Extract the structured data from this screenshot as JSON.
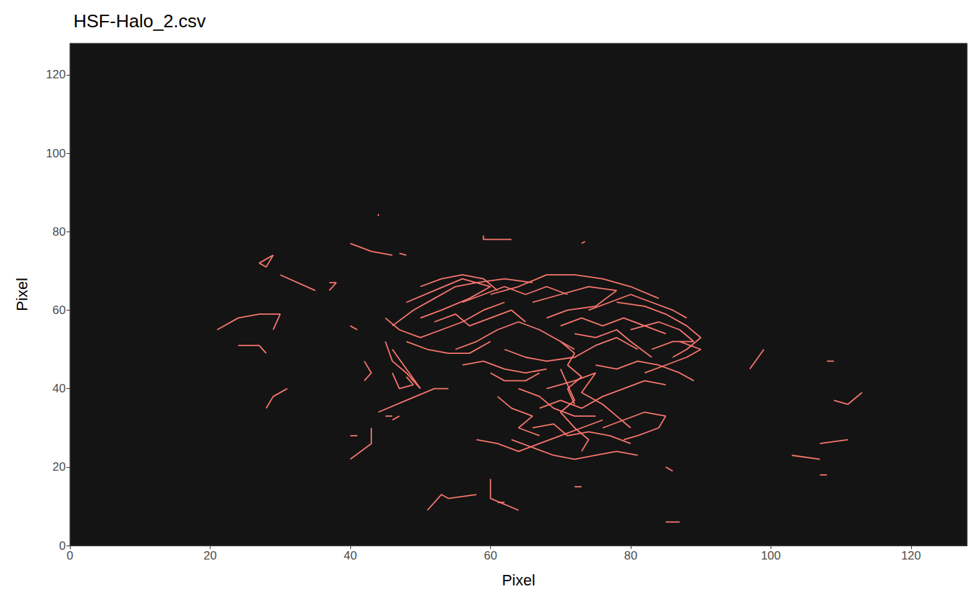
{
  "chart_data": {
    "type": "line",
    "title": "HSF-Halo_2.csv",
    "x_label": "Pixel",
    "y_label": "Pixel",
    "xlim": [
      0,
      128
    ],
    "ylim": [
      0,
      128
    ],
    "xticks": [
      0,
      20,
      40,
      60,
      80,
      100,
      120
    ],
    "yticks": [
      0,
      20,
      40,
      60,
      80,
      100,
      120
    ],
    "grid": false,
    "color": "#f8766d",
    "series": [
      {
        "values": [
          [
            21,
            55
          ],
          [
            24,
            58
          ],
          [
            27,
            59
          ],
          [
            30,
            59
          ],
          [
            29,
            55
          ]
        ]
      },
      {
        "values": [
          [
            24,
            51
          ],
          [
            27,
            51
          ],
          [
            28,
            49
          ]
        ]
      },
      {
        "values": [
          [
            27,
            72
          ],
          [
            29,
            74
          ],
          [
            28,
            71
          ],
          [
            27,
            72
          ]
        ]
      },
      {
        "values": [
          [
            30,
            69
          ],
          [
            35,
            65
          ]
        ]
      },
      {
        "values": [
          [
            28,
            35
          ],
          [
            29,
            38
          ],
          [
            31,
            40
          ]
        ]
      },
      {
        "values": [
          [
            37,
            65
          ],
          [
            38,
            67
          ],
          [
            37,
            67
          ]
        ]
      },
      {
        "values": [
          [
            40,
            77
          ],
          [
            43,
            75
          ],
          [
            46,
            74
          ]
        ]
      },
      {
        "values": [
          [
            47,
            74.5
          ],
          [
            48,
            74
          ]
        ]
      },
      {
        "values": [
          [
            44,
            84.5
          ],
          [
            44,
            84
          ]
        ]
      },
      {
        "values": [
          [
            59,
            79
          ],
          [
            59,
            78
          ],
          [
            63,
            78
          ]
        ]
      },
      {
        "values": [
          [
            73,
            77
          ],
          [
            73.5,
            77.5
          ]
        ]
      },
      {
        "values": [
          [
            40,
            56
          ],
          [
            41,
            55
          ]
        ]
      },
      {
        "values": [
          [
            97,
            45
          ],
          [
            99,
            50
          ]
        ]
      },
      {
        "values": [
          [
            108,
            47
          ],
          [
            109,
            47
          ]
        ]
      },
      {
        "values": [
          [
            109,
            37
          ],
          [
            111,
            36
          ],
          [
            113,
            39
          ]
        ]
      },
      {
        "values": [
          [
            107,
            26
          ],
          [
            111,
            27
          ]
        ]
      },
      {
        "values": [
          [
            103,
            23
          ],
          [
            107,
            22
          ]
        ]
      },
      {
        "values": [
          [
            107,
            18
          ],
          [
            108,
            18
          ]
        ]
      },
      {
        "values": [
          [
            40,
            22
          ],
          [
            43,
            26
          ],
          [
            43,
            30
          ]
        ]
      },
      {
        "values": [
          [
            40,
            28
          ],
          [
            41,
            28
          ]
        ]
      },
      {
        "values": [
          [
            44,
            34
          ],
          [
            48,
            37
          ],
          [
            52,
            40
          ],
          [
            54,
            40
          ]
        ]
      },
      {
        "values": [
          [
            45,
            33
          ],
          [
            46,
            33
          ]
        ]
      },
      {
        "values": [
          [
            51,
            9
          ],
          [
            53,
            13
          ],
          [
            54,
            12
          ],
          [
            58,
            13
          ]
        ]
      },
      {
        "values": [
          [
            60,
            17
          ],
          [
            60,
            12
          ],
          [
            64,
            9
          ]
        ]
      },
      {
        "values": [
          [
            61,
            11
          ],
          [
            62,
            11
          ]
        ]
      },
      {
        "values": [
          [
            72,
            15
          ],
          [
            73,
            15
          ]
        ]
      },
      {
        "values": [
          [
            85,
            20
          ],
          [
            86,
            19
          ]
        ]
      },
      {
        "values": [
          [
            85,
            6
          ],
          [
            87,
            6
          ]
        ]
      },
      {
        "values": [
          [
            42,
            47
          ],
          [
            43,
            44
          ],
          [
            42,
            42
          ]
        ]
      },
      {
        "values": [
          [
            46,
            32
          ],
          [
            47,
            33
          ]
        ]
      },
      {
        "values": [
          [
            45,
            52
          ],
          [
            46,
            47
          ],
          [
            48,
            44
          ],
          [
            49,
            42
          ],
          [
            50,
            40
          ],
          [
            48,
            45
          ],
          [
            46,
            50
          ]
        ]
      },
      {
        "values": [
          [
            46,
            56
          ],
          [
            49,
            60
          ],
          [
            52,
            63
          ],
          [
            55,
            66
          ],
          [
            58,
            67
          ],
          [
            62,
            68
          ],
          [
            66,
            67
          ]
        ]
      },
      {
        "values": [
          [
            48,
            62
          ],
          [
            52,
            65
          ],
          [
            56,
            68
          ],
          [
            60,
            66
          ],
          [
            57,
            63
          ],
          [
            53,
            60
          ],
          [
            50,
            58
          ]
        ]
      },
      {
        "values": [
          [
            45,
            58
          ],
          [
            47,
            55
          ],
          [
            50,
            53
          ],
          [
            53,
            55
          ],
          [
            56,
            57
          ],
          [
            59,
            60
          ],
          [
            62,
            62
          ]
        ]
      },
      {
        "values": [
          [
            60,
            64
          ],
          [
            64,
            66
          ],
          [
            68,
            69
          ],
          [
            72,
            69
          ],
          [
            76,
            68
          ],
          [
            80,
            66
          ],
          [
            84,
            63
          ]
        ]
      },
      {
        "values": [
          [
            66,
            62
          ],
          [
            70,
            64
          ],
          [
            74,
            66
          ],
          [
            78,
            65
          ],
          [
            75,
            61
          ],
          [
            71,
            60
          ],
          [
            68,
            58
          ]
        ]
      },
      {
        "values": [
          [
            78,
            62
          ],
          [
            82,
            61
          ],
          [
            85,
            59
          ],
          [
            88,
            56
          ],
          [
            90,
            53
          ],
          [
            88,
            50
          ],
          [
            86,
            48
          ]
        ]
      },
      {
        "values": [
          [
            80,
            55
          ],
          [
            84,
            57
          ],
          [
            87,
            55
          ],
          [
            89,
            52
          ],
          [
            86,
            52
          ],
          [
            83,
            50
          ]
        ]
      },
      {
        "values": [
          [
            55,
            50
          ],
          [
            58,
            52
          ],
          [
            61,
            55
          ],
          [
            64,
            57
          ],
          [
            67,
            55
          ],
          [
            70,
            52
          ],
          [
            72,
            50
          ]
        ]
      },
      {
        "values": [
          [
            62,
            50
          ],
          [
            65,
            48
          ],
          [
            68,
            47
          ],
          [
            72,
            48
          ],
          [
            75,
            51
          ],
          [
            78,
            53
          ],
          [
            81,
            50
          ]
        ]
      },
      {
        "values": [
          [
            70,
            56
          ],
          [
            73,
            58
          ],
          [
            76,
            56
          ],
          [
            79,
            58
          ],
          [
            82,
            56
          ],
          [
            85,
            54
          ]
        ]
      },
      {
        "values": [
          [
            52,
            57
          ],
          [
            55,
            59
          ],
          [
            57,
            56
          ],
          [
            60,
            58
          ],
          [
            63,
            60
          ],
          [
            65,
            57
          ]
        ]
      },
      {
        "values": [
          [
            70,
            45
          ],
          [
            71,
            41
          ],
          [
            72,
            37
          ],
          [
            70,
            34
          ],
          [
            72,
            30
          ],
          [
            74,
            27
          ],
          [
            73,
            24
          ]
        ]
      },
      {
        "values": [
          [
            68,
            40
          ],
          [
            72,
            42
          ],
          [
            75,
            44
          ],
          [
            73,
            39
          ],
          [
            76,
            36
          ],
          [
            78,
            33
          ],
          [
            80,
            30
          ]
        ]
      },
      {
        "values": [
          [
            63,
            27
          ],
          [
            66,
            25
          ],
          [
            69,
            23
          ],
          [
            72,
            22
          ],
          [
            75,
            23
          ],
          [
            78,
            24
          ],
          [
            81,
            23
          ]
        ]
      },
      {
        "values": [
          [
            58,
            27
          ],
          [
            61,
            26
          ],
          [
            64,
            24
          ],
          [
            67,
            26
          ],
          [
            70,
            28
          ],
          [
            73,
            30
          ],
          [
            76,
            32
          ]
        ]
      },
      {
        "values": [
          [
            76,
            30
          ],
          [
            79,
            32
          ],
          [
            82,
            34
          ],
          [
            85,
            33
          ],
          [
            84,
            30
          ],
          [
            81,
            28
          ],
          [
            79,
            27
          ]
        ]
      },
      {
        "values": [
          [
            67,
            35
          ],
          [
            70,
            37
          ],
          [
            73,
            35
          ],
          [
            76,
            38
          ],
          [
            79,
            40
          ],
          [
            82,
            42
          ],
          [
            85,
            41
          ]
        ]
      },
      {
        "values": [
          [
            75,
            46
          ],
          [
            78,
            45
          ],
          [
            81,
            47
          ],
          [
            84,
            46
          ],
          [
            87,
            44
          ],
          [
            89,
            42
          ]
        ]
      },
      {
        "values": [
          [
            70,
            52
          ],
          [
            72,
            49
          ],
          [
            71,
            46
          ],
          [
            73,
            43
          ],
          [
            71,
            40
          ],
          [
            72,
            36
          ]
        ]
      },
      {
        "values": [
          [
            64,
            40
          ],
          [
            67,
            38
          ],
          [
            69,
            35
          ],
          [
            72,
            33
          ],
          [
            75,
            33
          ]
        ]
      },
      {
        "values": [
          [
            56,
            46
          ],
          [
            59,
            47
          ],
          [
            62,
            45
          ],
          [
            65,
            44
          ],
          [
            68,
            45
          ]
        ]
      },
      {
        "values": [
          [
            48,
            52
          ],
          [
            51,
            50
          ],
          [
            54,
            49
          ],
          [
            57,
            49
          ],
          [
            60,
            52
          ]
        ]
      },
      {
        "values": [
          [
            66,
            30
          ],
          [
            69,
            31
          ],
          [
            71,
            28
          ],
          [
            74,
            29
          ],
          [
            77,
            28
          ],
          [
            80,
            26
          ]
        ]
      },
      {
        "values": [
          [
            74,
            60
          ],
          [
            77,
            62
          ],
          [
            80,
            64
          ],
          [
            83,
            62
          ],
          [
            86,
            60
          ],
          [
            88,
            58
          ]
        ]
      },
      {
        "values": [
          [
            56,
            62
          ],
          [
            59,
            64
          ],
          [
            62,
            66
          ],
          [
            65,
            64
          ],
          [
            68,
            66
          ],
          [
            71,
            64
          ]
        ]
      },
      {
        "values": [
          [
            50,
            66
          ],
          [
            53,
            68
          ],
          [
            56,
            69
          ],
          [
            59,
            68
          ],
          [
            61,
            65
          ]
        ]
      },
      {
        "values": [
          [
            82,
            44
          ],
          [
            85,
            46
          ],
          [
            88,
            48
          ],
          [
            90,
            50
          ],
          [
            87,
            52
          ]
        ]
      },
      {
        "values": [
          [
            61,
            38
          ],
          [
            63,
            35
          ],
          [
            66,
            33
          ],
          [
            64,
            30
          ],
          [
            67,
            28
          ]
        ]
      },
      {
        "values": [
          [
            72,
            54
          ],
          [
            75,
            53
          ],
          [
            78,
            55
          ],
          [
            80,
            52
          ],
          [
            83,
            48
          ]
        ]
      },
      {
        "values": [
          [
            46,
            44
          ],
          [
            47,
            40
          ],
          [
            49,
            41
          ],
          [
            48,
            43
          ]
        ]
      },
      {
        "values": [
          [
            60,
            44
          ],
          [
            62,
            42
          ],
          [
            65,
            42
          ],
          [
            67,
            44
          ]
        ]
      }
    ]
  }
}
